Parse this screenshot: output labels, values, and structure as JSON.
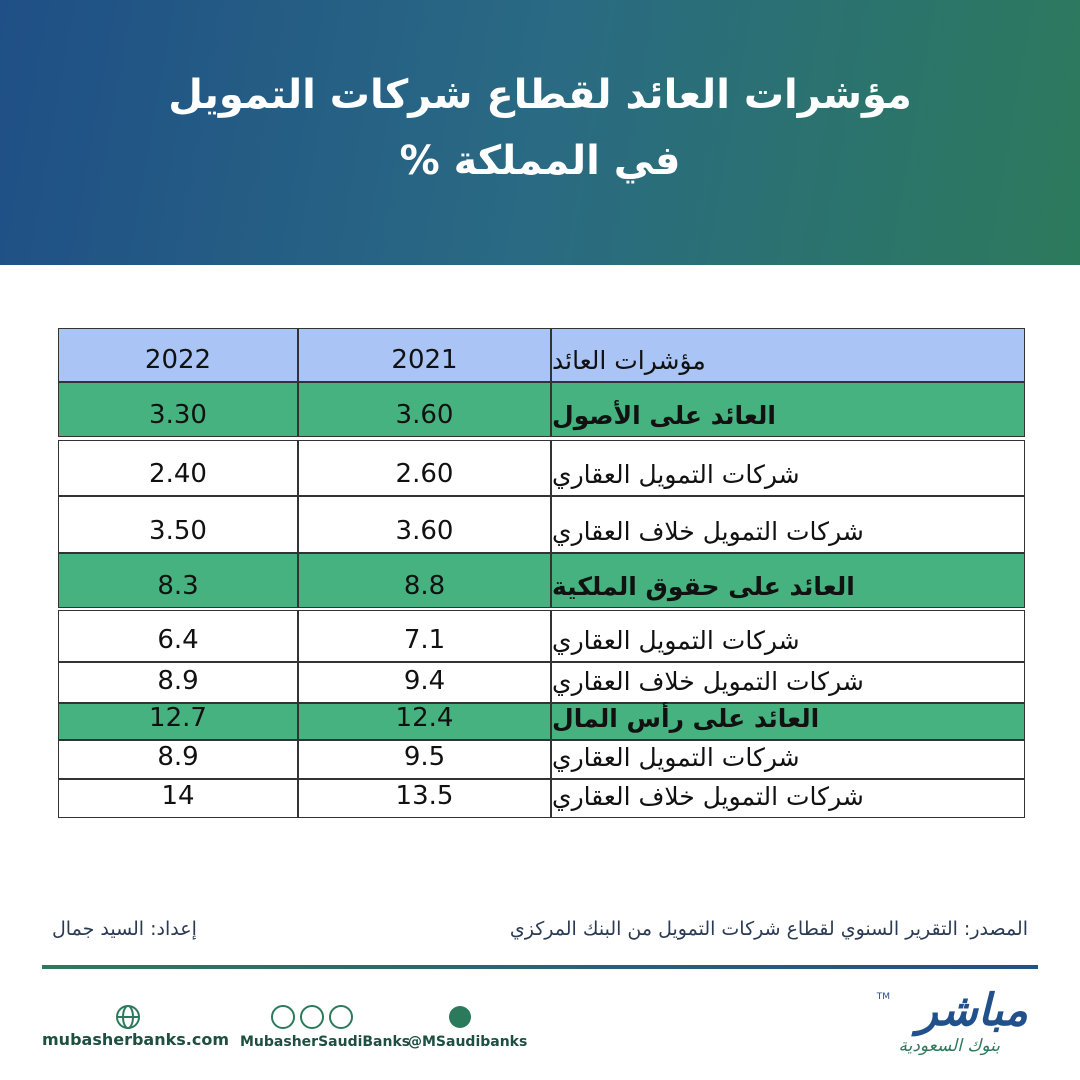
{
  "header": {
    "title_line1": "مؤشرات العائد لقطاع شركات التمويل",
    "title_line2": "في المملكة %"
  },
  "table": {
    "header": [
      "مؤشرات العائد",
      "2021",
      "2022"
    ],
    "rows": [
      [
        "العائد على الأصول",
        "3.60",
        "3.30"
      ],
      [
        "شركات التمويل العقاري",
        "2.60",
        "2.40"
      ],
      [
        "شركات التمويل خلاف العقاري",
        "3.60",
        "3.50"
      ],
      [
        "العائد على حقوق الملكية",
        "8.8",
        "8.3"
      ],
      [
        "شركات التمويل العقاري",
        "7.1",
        "6.4"
      ],
      [
        "شركات التمويل خلاف العقاري",
        "9.4",
        "8.9"
      ],
      [
        "العائد على رأس المال",
        "12.4",
        "12.7"
      ],
      [
        "شركات التمويل العقاري",
        "9.5",
        "8.9"
      ],
      [
        "شركات التمويل خلاف العقاري",
        "13.5",
        "14"
      ]
    ]
  },
  "footer": {
    "source": "المصدر: التقرير السنوي لقطاع شركات التمويل من البنك المركزي",
    "author": "إعداد: السيد جمال",
    "website": "mubasherbanks.com",
    "social": "MubasherSaudiBanks",
    "twitter": "@MSaudibanks",
    "logo": "مباشر",
    "logo_tagline": "بنوك السعودية",
    "trademark": "TM"
  }
}
